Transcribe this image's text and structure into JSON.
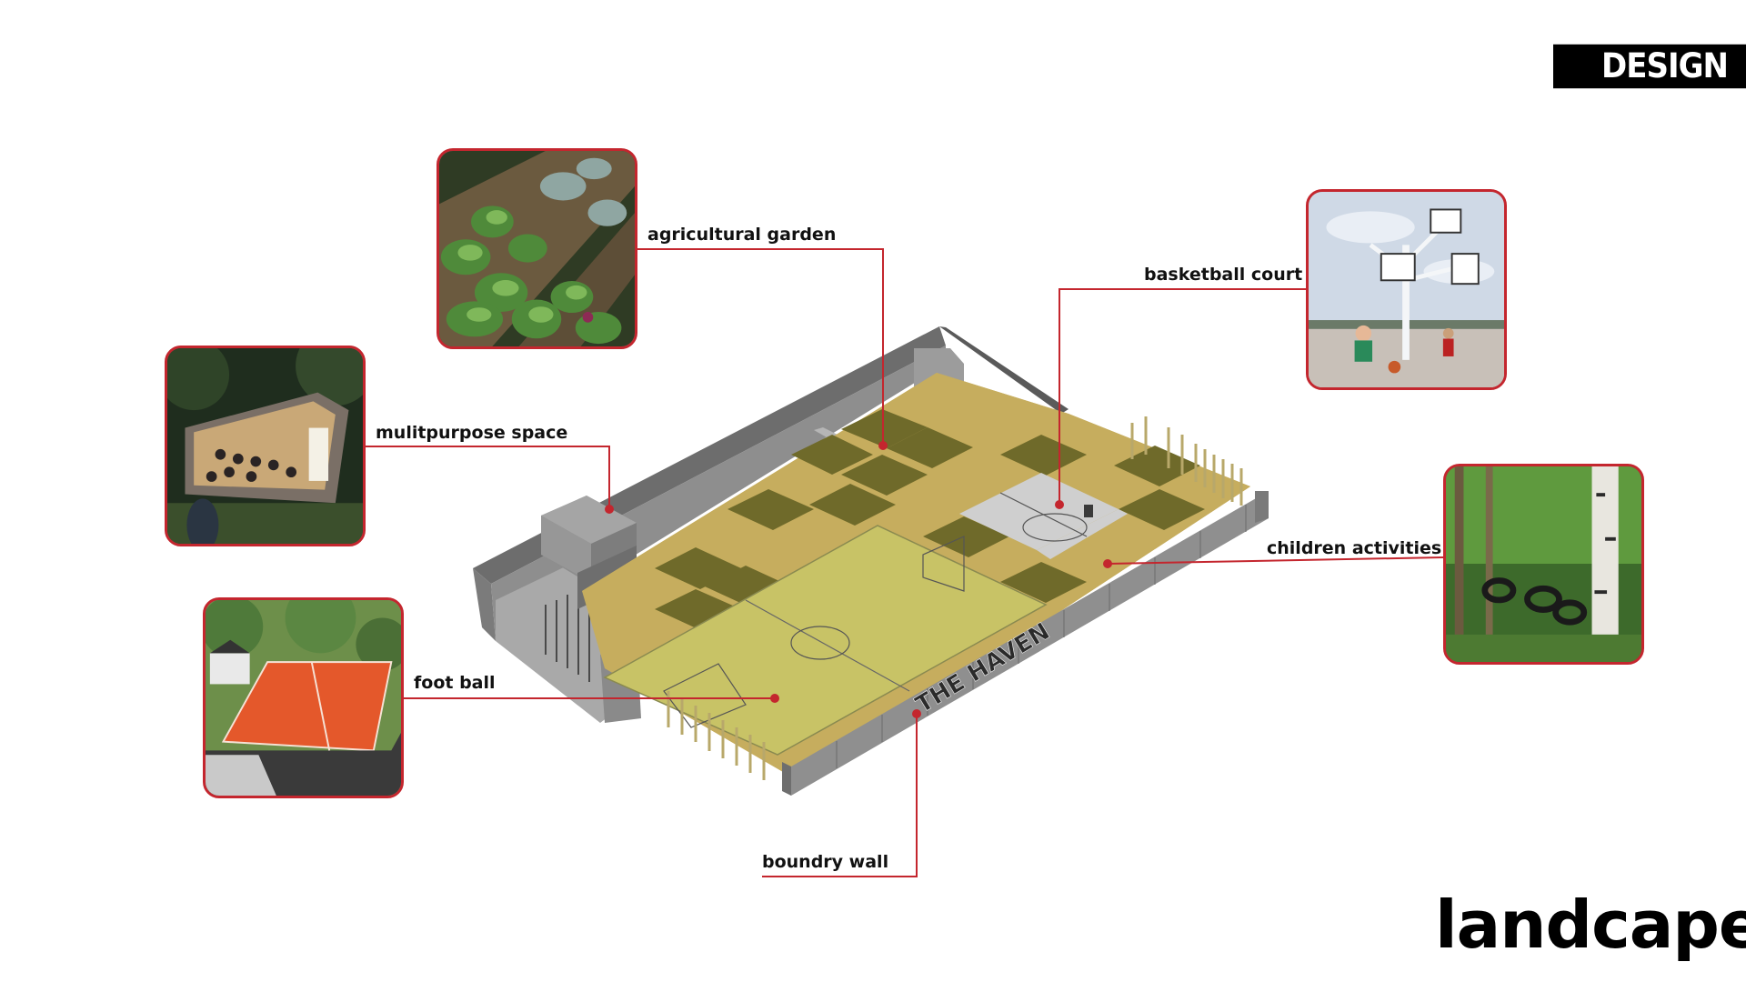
{
  "header": {
    "tag": "DESIGN"
  },
  "title": "landcape",
  "callouts": {
    "agricultural_garden": "agricultural garden",
    "basketball_court": "basketball court",
    "multipurpose_space": "mulitpurpose space",
    "children_activities": "children activities",
    "foot_ball": "foot ball",
    "boundry_wall": "boundry wall"
  },
  "sign_text": "THE HAVEN",
  "colors": {
    "accent_red": "#c4262e",
    "ground_tan": "#c6ad5e",
    "dark_green_tiles": "#6f6a2a",
    "pitch": "#c8c366",
    "court": "#c9c9c9",
    "structure": "#8f8f8f"
  }
}
